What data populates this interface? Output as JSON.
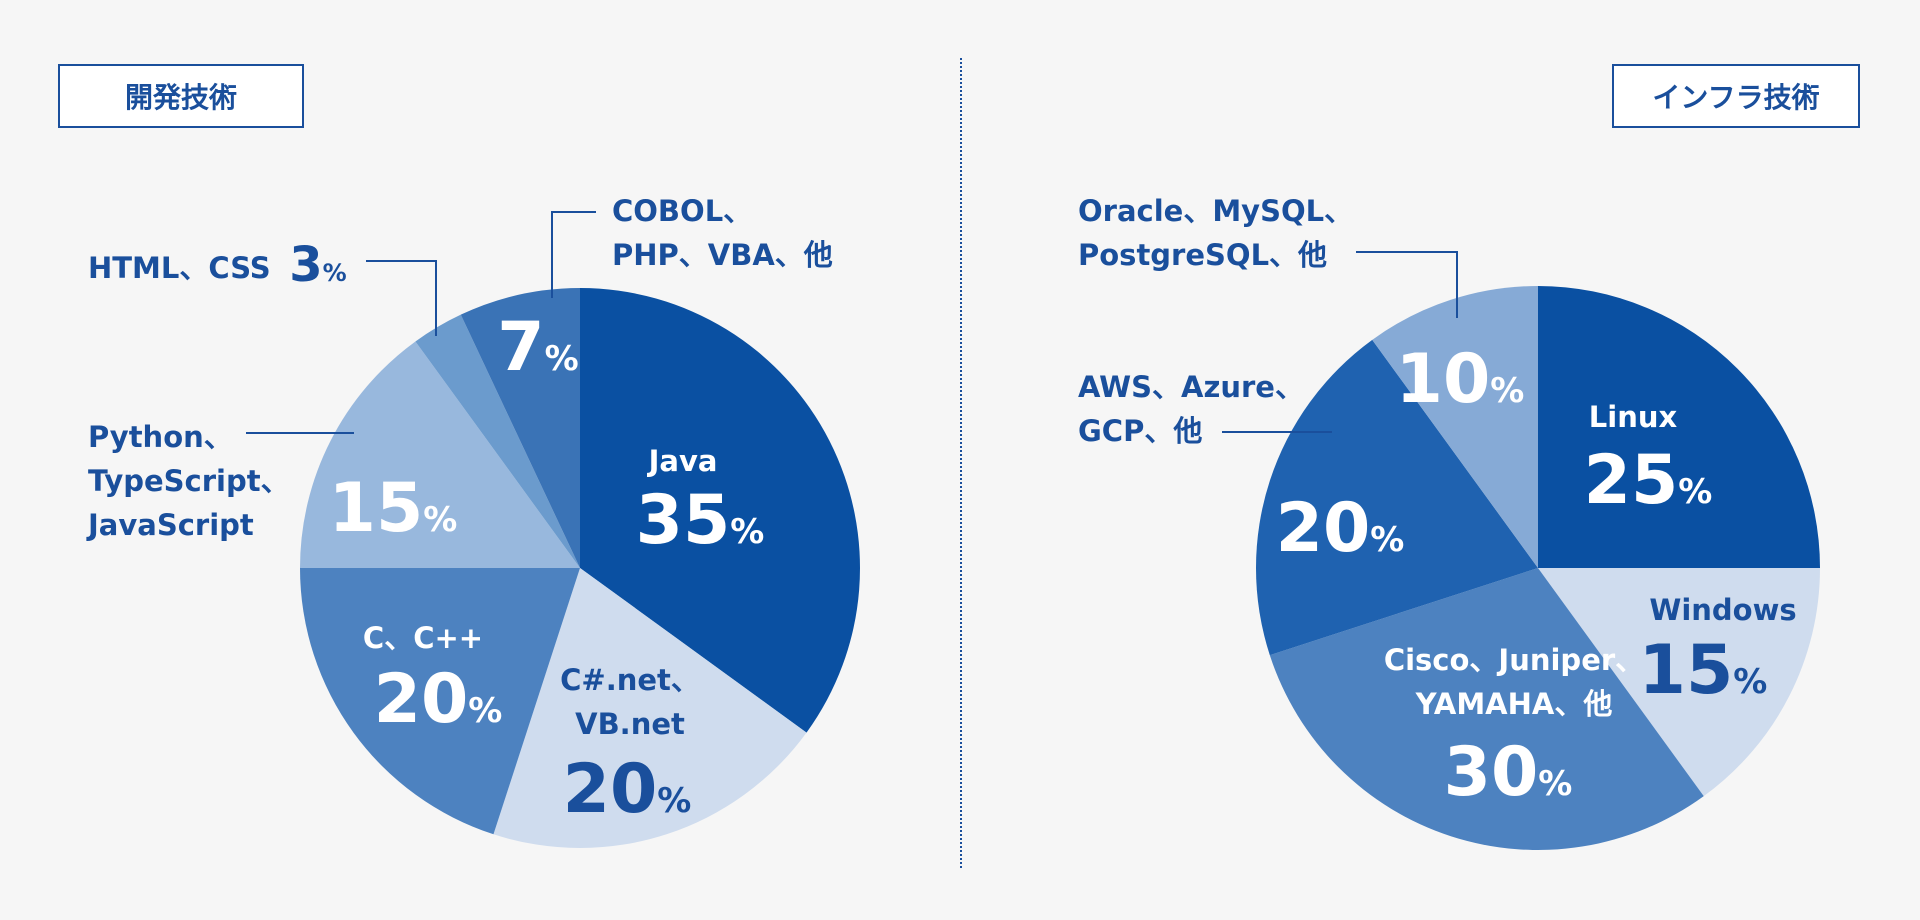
{
  "headings": {
    "dev": "開発技術",
    "infra": "インフラ技術"
  },
  "colors": {
    "label_blue": "#1a4f9c",
    "dark": "#0a50a2",
    "mid": "#4d82c0",
    "light": "#cfdcee",
    "pale": "#98b8dd",
    "steel": "#6b9bcd",
    "royal": "#3a73b6",
    "infra_pale": "#86aad6",
    "infra_blue": "#1f62b0"
  },
  "chart_data": [
    {
      "type": "pie",
      "title": "開発技術",
      "unit": "%",
      "slices": [
        {
          "lines": [
            "Java"
          ],
          "value": 35,
          "color": "#0a50a2"
        },
        {
          "lines": [
            "C#.net、",
            "VB.net"
          ],
          "value": 20,
          "color": "#cfdcee"
        },
        {
          "lines": [
            "C、C++"
          ],
          "value": 20,
          "color": "#4d82c0"
        },
        {
          "lines": [
            "Python、",
            "TypeScript、",
            "JavaScript"
          ],
          "value": 15,
          "color": "#98b8dd"
        },
        {
          "lines": [
            "HTML、CSS"
          ],
          "value": 3,
          "color": "#6b9bcd"
        },
        {
          "lines": [
            "COBOL、",
            "PHP、VBA、他"
          ],
          "value": 7,
          "color": "#3a73b6"
        }
      ]
    },
    {
      "type": "pie",
      "title": "インフラ技術",
      "unit": "%",
      "slices": [
        {
          "lines": [
            "Linux"
          ],
          "value": 25,
          "color": "#0a50a2"
        },
        {
          "lines": [
            "Windows"
          ],
          "value": 15,
          "color": "#cfdcee"
        },
        {
          "lines": [
            "Cisco、Juniper、",
            "YAMAHA、他"
          ],
          "value": 30,
          "color": "#4d82c0"
        },
        {
          "lines": [
            "AWS、Azure、",
            "GCP、他"
          ],
          "value": 20,
          "color": "#1f62b0"
        },
        {
          "lines": [
            "Oracle、MySQL、",
            "PostgreSQL、他"
          ],
          "value": 10,
          "color": "#86aad6"
        }
      ]
    }
  ]
}
